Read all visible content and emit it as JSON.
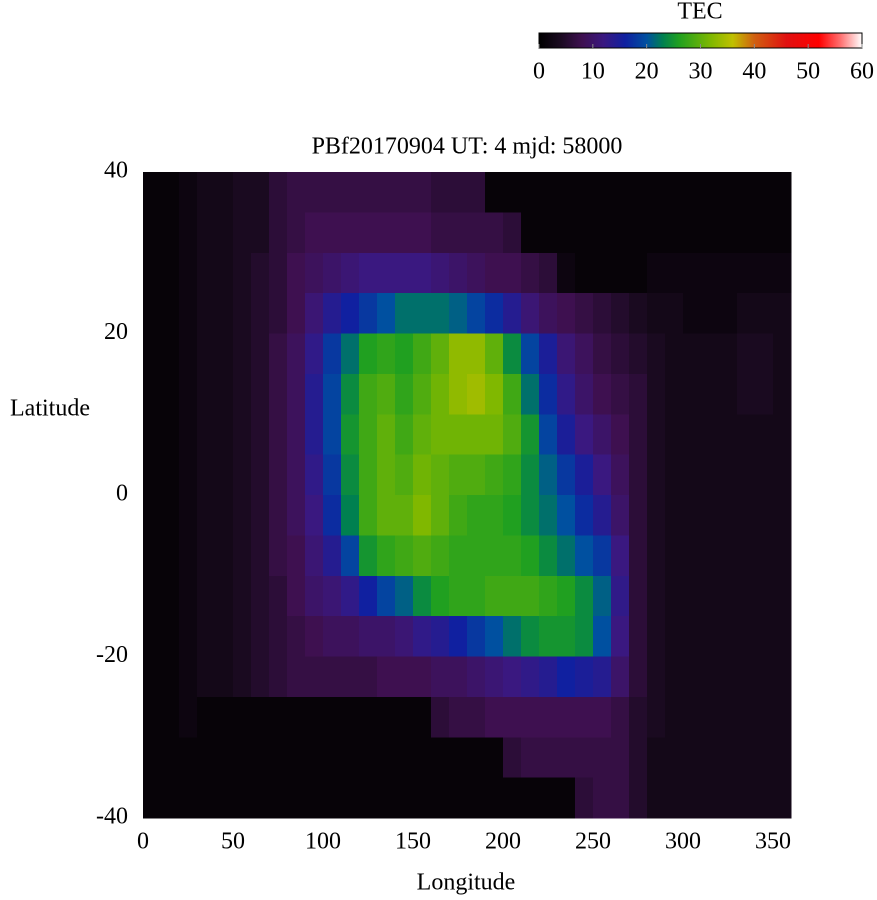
{
  "chart_data": {
    "type": "heatmap",
    "title": "PBf20170904  UT: 4  mjd: 58000",
    "x_label": "Longitude",
    "y_label": "Latitude",
    "xlim": [
      0,
      360
    ],
    "ylim": [
      -40,
      40
    ],
    "xticks": [
      0,
      50,
      100,
      150,
      200,
      250,
      300,
      350
    ],
    "yticks": [
      40,
      20,
      0,
      -20,
      -40
    ],
    "x": [
      5,
      15,
      25,
      35,
      45,
      55,
      65,
      75,
      85,
      95,
      105,
      115,
      125,
      135,
      145,
      155,
      165,
      175,
      185,
      195,
      205,
      215,
      225,
      235,
      245,
      255,
      265,
      275,
      285,
      295,
      305,
      315,
      325,
      335,
      345,
      355
    ],
    "y": [
      37.5,
      32.5,
      27.5,
      22.5,
      17.5,
      12.5,
      7.5,
      2.5,
      -2.5,
      -7.5,
      -12.5,
      -17.5,
      -22.5,
      -27.5,
      -32.5,
      -37.5
    ],
    "z": [
      [
        1,
        1,
        2,
        3,
        3,
        4,
        4,
        6,
        7,
        7,
        7,
        7,
        7,
        7,
        7,
        7,
        6,
        6,
        6,
        1,
        1,
        1,
        1,
        1,
        1,
        1,
        1,
        1,
        1,
        1,
        1,
        1,
        1,
        1,
        1,
        1
      ],
      [
        1,
        1,
        2,
        3,
        3,
        4,
        4,
        6,
        7,
        8,
        8,
        8,
        8,
        8,
        8,
        8,
        7,
        7,
        7,
        7,
        6,
        1,
        1,
        1,
        1,
        1,
        1,
        1,
        1,
        1,
        1,
        1,
        1,
        1,
        1,
        1
      ],
      [
        1,
        1,
        2,
        3,
        3,
        4,
        5,
        6,
        8,
        9,
        10,
        11,
        12,
        12,
        12,
        12,
        11,
        10,
        9,
        8,
        8,
        7,
        6,
        2,
        1,
        1,
        1,
        1,
        2,
        2,
        2,
        2,
        2,
        2,
        2,
        2
      ],
      [
        1,
        1,
        2,
        3,
        3,
        4,
        5,
        6,
        8,
        11,
        14,
        16,
        18,
        20,
        22,
        22,
        22,
        21,
        19,
        17,
        14,
        11,
        9,
        8,
        7,
        6,
        5,
        4,
        3,
        3,
        2,
        2,
        2,
        3,
        3,
        3
      ],
      [
        1,
        1,
        2,
        3,
        3,
        4,
        5,
        7,
        9,
        13,
        18,
        22,
        26,
        27,
        26,
        28,
        30,
        33,
        33,
        30,
        24,
        19,
        15,
        11,
        9,
        7,
        6,
        5,
        4,
        3,
        3,
        3,
        3,
        4,
        4,
        3
      ],
      [
        1,
        1,
        2,
        3,
        3,
        4,
        5,
        7,
        9,
        14,
        19,
        24,
        28,
        29,
        27,
        29,
        31,
        33,
        34,
        32,
        28,
        22,
        17,
        13,
        10,
        8,
        7,
        6,
        4,
        3,
        3,
        3,
        3,
        4,
        4,
        3
      ],
      [
        1,
        1,
        2,
        3,
        3,
        4,
        5,
        7,
        9,
        14,
        19,
        25,
        28,
        30,
        28,
        30,
        31,
        31,
        31,
        31,
        29,
        25,
        19,
        15,
        12,
        10,
        8,
        6,
        4,
        3,
        3,
        3,
        3,
        3,
        3,
        3
      ],
      [
        1,
        1,
        2,
        3,
        3,
        4,
        5,
        7,
        9,
        13,
        18,
        24,
        28,
        30,
        29,
        31,
        30,
        29,
        29,
        28,
        27,
        24,
        21,
        18,
        15,
        12,
        9,
        6,
        4,
        3,
        3,
        3,
        3,
        3,
        3,
        3
      ],
      [
        1,
        1,
        2,
        3,
        3,
        4,
        5,
        7,
        9,
        12,
        17,
        23,
        28,
        30,
        30,
        32,
        30,
        28,
        27,
        27,
        26,
        24,
        22,
        20,
        17,
        14,
        10,
        6,
        4,
        3,
        3,
        3,
        3,
        3,
        3,
        3
      ],
      [
        1,
        1,
        2,
        3,
        3,
        4,
        5,
        7,
        8,
        11,
        14,
        19,
        25,
        27,
        28,
        29,
        28,
        27,
        27,
        27,
        27,
        26,
        24,
        22,
        20,
        18,
        12,
        6,
        4,
        3,
        3,
        3,
        3,
        3,
        3,
        3
      ],
      [
        1,
        1,
        2,
        3,
        3,
        4,
        5,
        6,
        8,
        10,
        11,
        13,
        16,
        19,
        21,
        24,
        26,
        27,
        27,
        28,
        28,
        28,
        27,
        26,
        24,
        21,
        13,
        6,
        4,
        3,
        3,
        3,
        3,
        3,
        3,
        3
      ],
      [
        1,
        1,
        2,
        3,
        3,
        4,
        5,
        6,
        7,
        8,
        9,
        9,
        10,
        10,
        11,
        13,
        14,
        16,
        18,
        20,
        22,
        24,
        25,
        25,
        24,
        20,
        12,
        6,
        4,
        3,
        3,
        3,
        3,
        3,
        3,
        3
      ],
      [
        1,
        1,
        2,
        3,
        3,
        4,
        5,
        6,
        7,
        7,
        7,
        7,
        7,
        8,
        8,
        8,
        9,
        9,
        10,
        11,
        12,
        13,
        14,
        16,
        15,
        14,
        10,
        6,
        4,
        3,
        3,
        3,
        3,
        3,
        3,
        3
      ],
      [
        1,
        1,
        2,
        1,
        1,
        1,
        1,
        1,
        1,
        1,
        1,
        1,
        1,
        1,
        1,
        1,
        6,
        7,
        7,
        8,
        8,
        8,
        8,
        8,
        8,
        8,
        7,
        5,
        4,
        3,
        3,
        3,
        3,
        3,
        3,
        3
      ],
      [
        1,
        1,
        1,
        1,
        1,
        1,
        1,
        1,
        1,
        1,
        1,
        1,
        1,
        1,
        1,
        1,
        1,
        1,
        1,
        1,
        6,
        7,
        7,
        7,
        7,
        7,
        7,
        5,
        3,
        3,
        3,
        3,
        3,
        3,
        3,
        3
      ],
      [
        1,
        1,
        1,
        1,
        1,
        1,
        1,
        1,
        1,
        1,
        1,
        1,
        1,
        1,
        1,
        1,
        1,
        1,
        1,
        1,
        1,
        1,
        1,
        1,
        6,
        7,
        7,
        5,
        3,
        3,
        3,
        3,
        3,
        3,
        3,
        3
      ]
    ],
    "colorbar": {
      "label": "TEC",
      "lim": [
        0,
        60
      ],
      "ticks": [
        0,
        10,
        20,
        30,
        40,
        50,
        60
      ],
      "colormap": [
        [
          0,
          "#000000"
        ],
        [
          4,
          "#1a0a20"
        ],
        [
          8,
          "#3e1050"
        ],
        [
          12,
          "#3a1880"
        ],
        [
          16,
          "#1020a0"
        ],
        [
          20,
          "#0050a0"
        ],
        [
          23,
          "#008050"
        ],
        [
          26,
          "#20a020"
        ],
        [
          32,
          "#80b800"
        ],
        [
          36,
          "#c0c000"
        ],
        [
          40,
          "#d06010"
        ],
        [
          46,
          "#e01010"
        ],
        [
          52,
          "#ff0000"
        ],
        [
          56,
          "#ff7070"
        ],
        [
          60,
          "#ffffff"
        ]
      ]
    }
  }
}
